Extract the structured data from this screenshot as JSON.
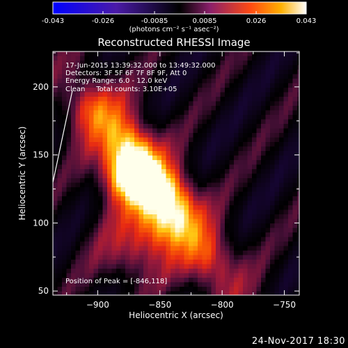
{
  "chart_data": {
    "type": "heatmap",
    "title": "Reconstructed RHESSI Image",
    "xlabel": "Heliocentric X (arcsec)",
    "ylabel": "Heliocentric Y (arcsec)",
    "xlim": [
      -936,
      -738
    ],
    "ylim": [
      47,
      226
    ],
    "xticks": [
      -900,
      -850,
      -800,
      -750
    ],
    "yticks": [
      50,
      100,
      150,
      200
    ],
    "colormap": "signed (blue to black to orange/white)",
    "colorbar": {
      "min": -0.043,
      "max": 0.043,
      "ticks": [
        "-0.043",
        "-0.026",
        "-0.0085",
        "0.0085",
        "0.026",
        "0.043"
      ],
      "units_label": "(photons cm⁻² s⁻¹ asec⁻²)"
    },
    "peak": {
      "x": -846,
      "y": 118
    },
    "info_lines": [
      "17-Jun-2015 13:39:32.000 to 13:49:32.000",
      "Detectors: 3F 5F 6F 7F 8F 9F, Att 0",
      "Energy Range: 6.0 - 12.0 keV",
      "Clean     Total counts: 3.10E+05"
    ],
    "peak_label": "Position of Peak = [-846,118]",
    "date_stamp": "24-Nov-2017 18:30"
  }
}
